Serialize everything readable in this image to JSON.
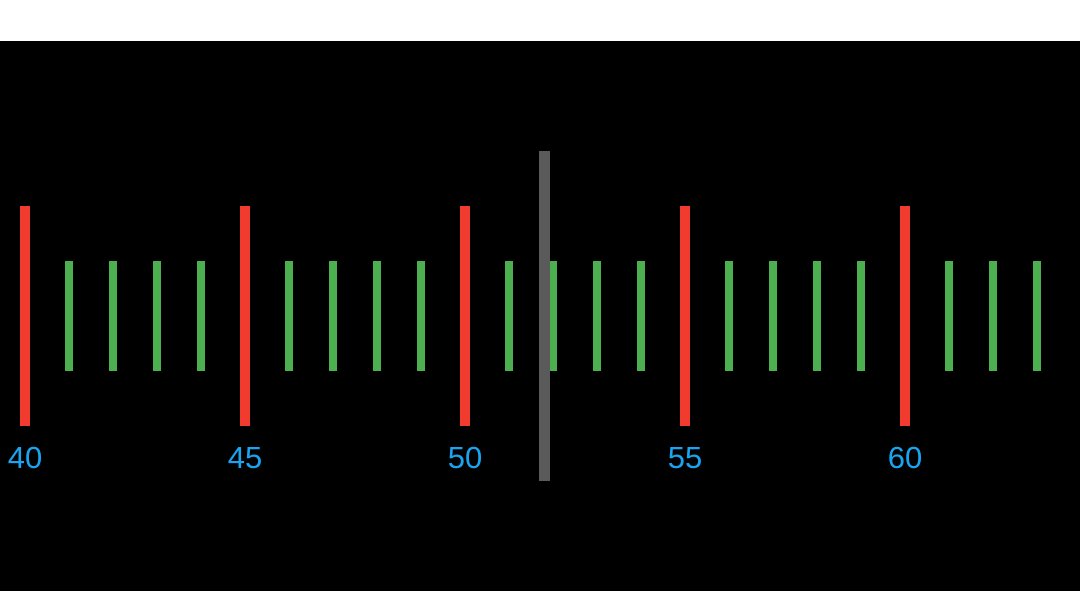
{
  "ruler": {
    "range_start": 40,
    "range_end": 63,
    "major_step": 5,
    "selected_value": 51.8,
    "major_labels": [
      "40",
      "45",
      "50",
      "55",
      "60"
    ],
    "colors": {
      "background": "#000000",
      "major_tick": "#f23b2f",
      "minor_tick": "#4caf50",
      "label": "#1aa3f0",
      "indicator": "#5a5a5a",
      "top_bar": "#ffffff"
    }
  }
}
